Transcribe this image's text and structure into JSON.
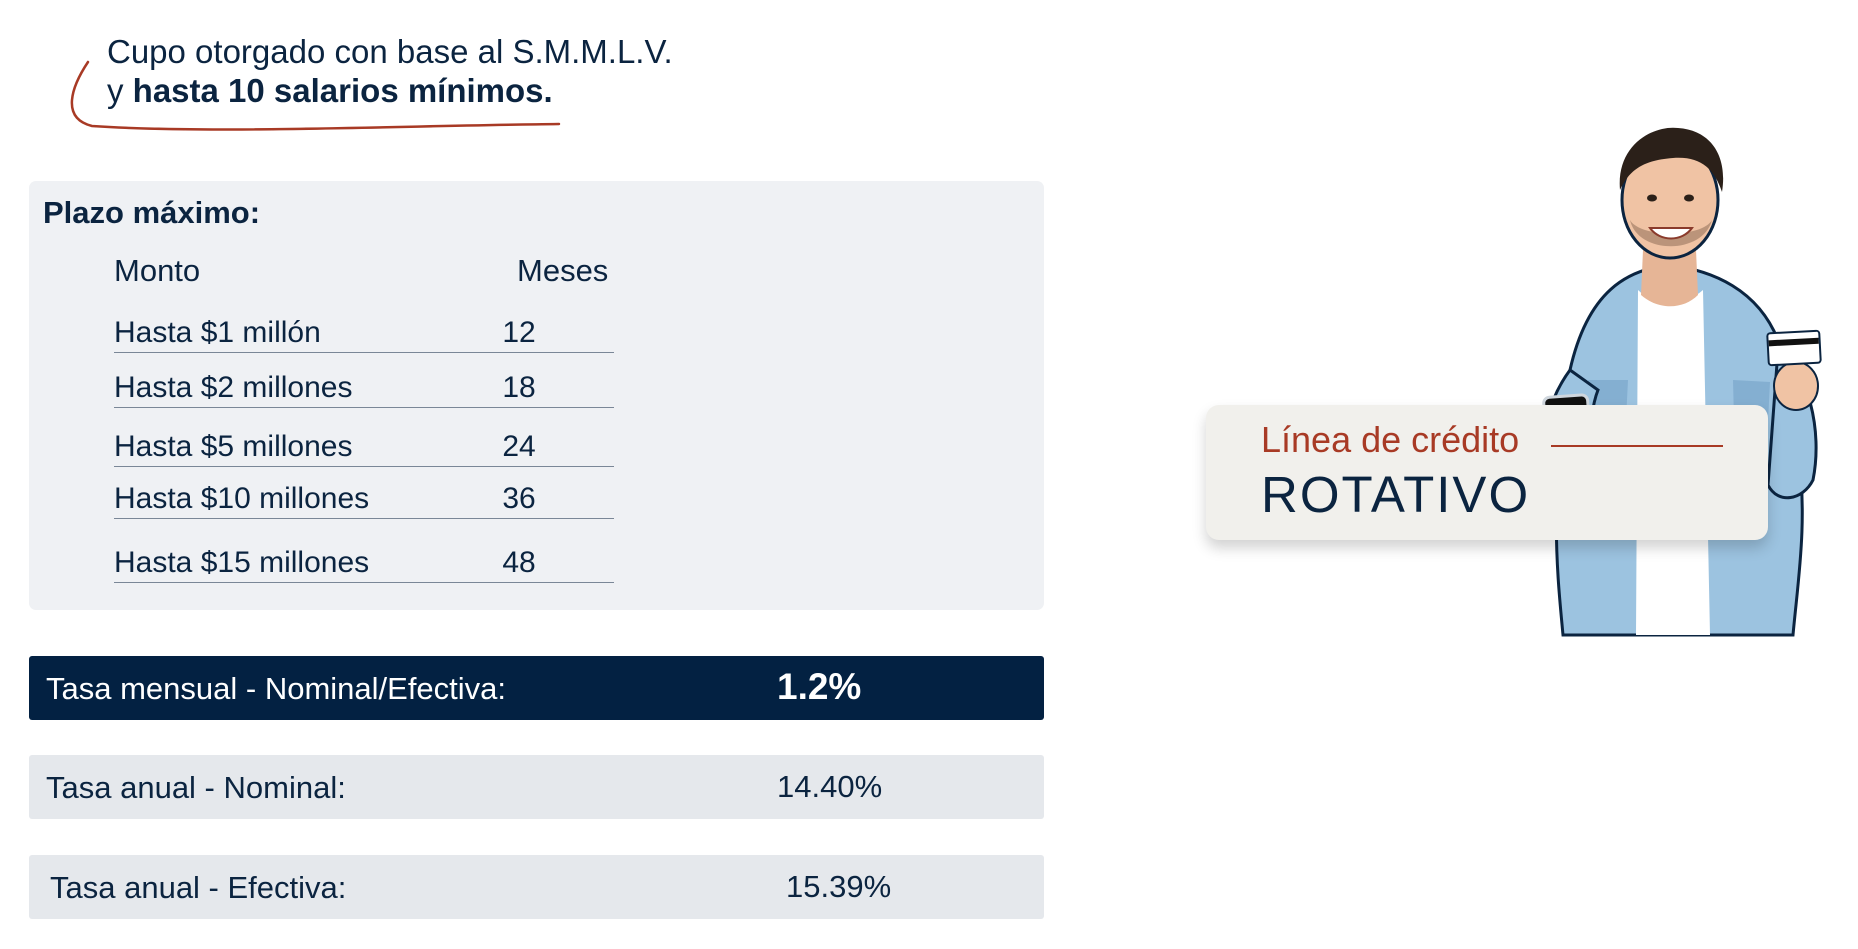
{
  "intro": {
    "line1": "Cupo otorgado con base al S.M.M.L.V.",
    "line2_prefix": "y ",
    "line2_bold": "hasta 10 salarios mínimos."
  },
  "plazo": {
    "title": "Plazo máximo:",
    "headers": {
      "monto": "Monto",
      "meses": "Meses"
    },
    "rows": [
      {
        "monto": "Hasta $1 millón",
        "meses": "12"
      },
      {
        "monto": "Hasta $2 millones",
        "meses": "18"
      },
      {
        "monto": "Hasta $5 millones",
        "meses": "24"
      },
      {
        "monto": "Hasta $10 millones",
        "meses": "36"
      },
      {
        "monto": "Hasta $15 millones",
        "meses": "48"
      }
    ]
  },
  "rates": [
    {
      "label": "Tasa mensual - Nominal/Efectiva:",
      "value": "1.2%"
    },
    {
      "label": "Tasa anual - Nominal:",
      "value": "14.40%"
    },
    {
      "label": "Tasa anual - Efectiva:",
      "value": "15.39%"
    }
  ],
  "card": {
    "subtitle": "Línea de crédito",
    "title": "ROTATIVO"
  },
  "colors": {
    "navy": "#032142",
    "accent_red": "#a83a25",
    "panel": "#eff1f4",
    "light_bar": "#e5e8ec",
    "card_bg": "#f1f0ec"
  }
}
